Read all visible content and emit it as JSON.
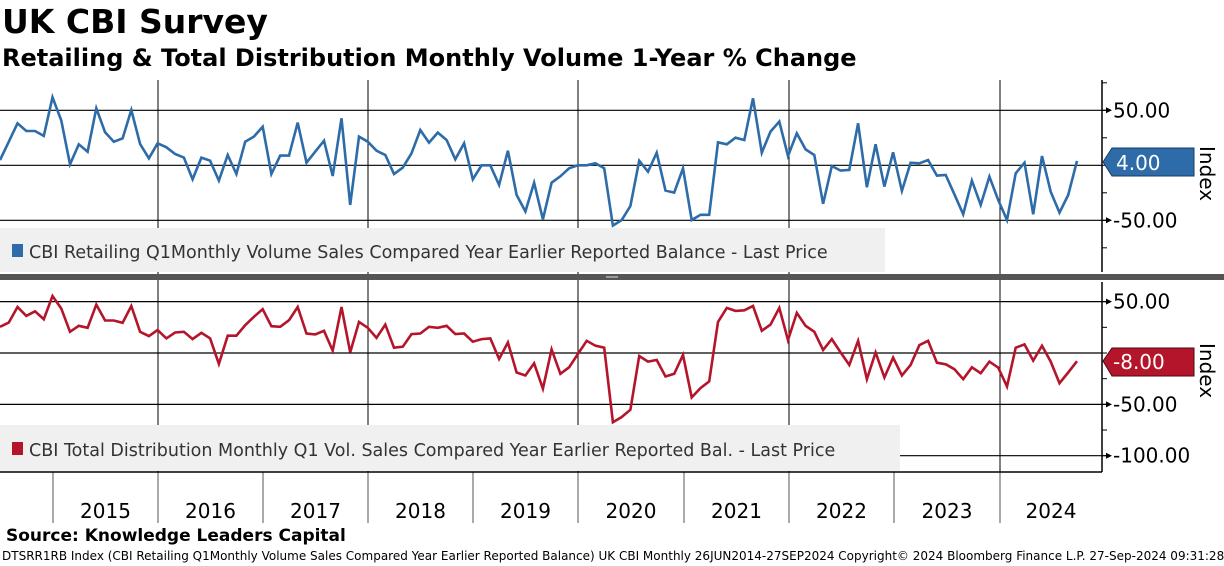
{
  "header": {
    "title": "UK CBI Survey",
    "subtitle": "Retailing & Total Distribution Monthly Volume 1-Year % Change"
  },
  "footer": {
    "source": "Source: Knowledge Leaders Capital",
    "info": "DTSRR1RB Index (CBI Retailing Q1Monthly Volume Sales Compared Year Earlier Reported Balance) UK CBI  Monthly 26JUN2014-27SEP2024  Copyright© 2024 Bloomberg Finance L.P.  27-Sep-2024 09:31:28"
  },
  "chart_data": [
    {
      "type": "line",
      "panel": "top",
      "title": "CBI Retailing Q1Monthly Volume Sales Compared Year Earlier Reported Balance - Last Price",
      "legend": "CBI Retailing Q1Monthly Volume Sales Compared Year Earlier Reported Balance - Last Price",
      "ylabel": "Index",
      "color": "#2d6ca8",
      "ylim": [
        -97,
        77.5
      ],
      "yticks": [
        {
          "v": 50,
          "label": "50.00"
        },
        {
          "v": -50,
          "label": "-50.00"
        }
      ],
      "last_value": "4.00",
      "x_start": "Jun 2014",
      "x_end": "Sep 2024",
      "frequency": "monthly",
      "values": [
        4.8,
        21.5,
        38.2,
        31.2,
        31.2,
        26.7,
        61.8,
        40.6,
        0.9,
        19.1,
        12.4,
        51.8,
        30,
        21.5,
        24.5,
        50.3,
        19.4,
        6.4,
        20,
        16.4,
        10.3,
        7,
        -12.7,
        7,
        4.2,
        -13.9,
        9.4,
        -7.9,
        21.5,
        26.1,
        35.1,
        -7.9,
        8.8,
        8.8,
        38.8,
        2.4,
        12.4,
        22.4,
        -9.7,
        42.7,
        -36,
        26.1,
        21.5,
        13.3,
        9.4,
        -7.9,
        -2.1,
        10.9,
        32.1,
        20.6,
        29.7,
        23,
        5.5,
        20,
        -12.7,
        0,
        0,
        -17.9,
        13.3,
        -26.9,
        -42,
        -15.8,
        -49.1,
        -15.8,
        -10,
        -2.7,
        0,
        0,
        1.8,
        -2.7,
        -54.8,
        -49.7,
        -37,
        4.2,
        -5.8,
        11.5,
        -23,
        -24.8,
        -2.7,
        -49.7,
        -45,
        -45,
        20.9,
        19.1,
        25.1,
        23,
        60.9,
        11.5,
        30.6,
        39.7,
        8.5,
        29.1,
        14.5,
        9.4,
        -35,
        -0.6,
        -4.8,
        -4.2,
        38.2,
        -20,
        19.1,
        -19.4,
        11.8,
        -23.3,
        2.4,
        1.8,
        4.8,
        -9.4,
        -8.8,
        -26.4,
        -44.5,
        -13.9,
        -36,
        -10.3,
        -31.5,
        -49.7,
        -7.3,
        2.4,
        -44.5,
        8.5,
        -24,
        -43,
        -27,
        4
      ]
    },
    {
      "type": "line",
      "panel": "bottom",
      "title": "CBI Total Distribution Monthly Q1 Vol. Sales Compared Year Earlier Reported Bal. - Last Price",
      "legend": "CBI Total Distribution Monthly Q1 Vol. Sales Compared Year Earlier Reported Bal. - Last Price",
      "ylabel": "Index",
      "color": "#b5152b",
      "ylim": [
        -119,
        69
      ],
      "yticks": [
        {
          "v": 50,
          "label": "50.00"
        },
        {
          "v": -50,
          "label": "-50.00"
        },
        {
          "v": -100,
          "label": "-100.00"
        }
      ],
      "last_value": "-8.00",
      "x_start": "Jun 2014",
      "x_end": "Sep 2024",
      "frequency": "monthly",
      "values": [
        25.5,
        29.7,
        44.8,
        36.1,
        40.6,
        32.9,
        55.5,
        43.2,
        20.6,
        26.5,
        24.5,
        47.1,
        31.6,
        31.6,
        29.4,
        45.8,
        20.6,
        16.5,
        22.3,
        14.2,
        20,
        20.6,
        13.5,
        19.7,
        14.2,
        -10.6,
        16.8,
        16.8,
        27.1,
        35.2,
        42.6,
        26.1,
        25.5,
        31.9,
        44.8,
        19,
        18.1,
        21.6,
        2.3,
        44.8,
        0.6,
        30.3,
        24.5,
        14.8,
        27.7,
        5.2,
        6.1,
        18.4,
        19,
        25.5,
        24.5,
        26.5,
        18.4,
        19,
        11,
        13.5,
        14.2,
        -5.8,
        10.3,
        -19,
        -21.9,
        -10,
        -34.8,
        3.5,
        -20.3,
        -13.9,
        -1,
        11.9,
        7.1,
        5.2,
        -67.4,
        -62.3,
        -55.2,
        -2.9,
        -8.4,
        -6.8,
        -22.9,
        -20.3,
        -1.9,
        -43.2,
        -34.2,
        -27.7,
        30.3,
        43.9,
        41,
        41.6,
        45.8,
        21.6,
        27.7,
        43.9,
        12.6,
        39,
        26.5,
        20.6,
        2.9,
        13.5,
        0.6,
        -11.6,
        11.9,
        -25.5,
        0.6,
        -23.9,
        -4.5,
        -21.9,
        -11.6,
        7.7,
        11.9,
        -9.4,
        -11,
        -15.8,
        -25.5,
        -13.9,
        -19.7,
        -8.4,
        -14.2,
        -32.6,
        5.2,
        8.4,
        -7.4,
        7.1,
        -8.4,
        -29.4,
        -19,
        -8
      ]
    }
  ],
  "x_axis": {
    "labels": [
      "2015",
      "2016",
      "2017",
      "2018",
      "2019",
      "2020",
      "2021",
      "2022",
      "2023",
      "2024"
    ]
  }
}
